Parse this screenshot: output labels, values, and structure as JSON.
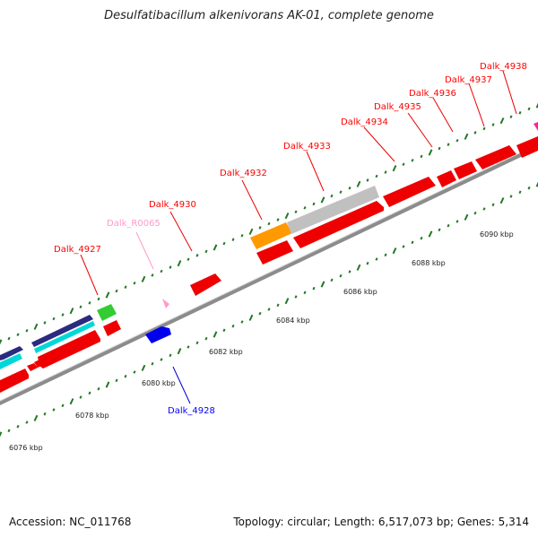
{
  "title": "Desulfatibacillum alkenivorans AK-01, complete genome",
  "footer": {
    "accession": "Accession: NC_011768",
    "summary": "Topology: circular; Length: 6,517,073 bp; Genes: 5,314"
  },
  "colors": {
    "forward_gene": "#ff0000",
    "reverse_gene": "#0000ff",
    "rna": "#ff99cc",
    "tick": "#227722",
    "backbone": "#888888",
    "cyan": "#00e0e0",
    "navy": "#333388",
    "green": "#33cc33",
    "orange": "#ff9900",
    "gray": "#bbbbbb",
    "magenta": "#ff2299"
  },
  "axis_ticks": [
    "6076 kbp",
    "6078 kbp",
    "6080 kbp",
    "6082 kbp",
    "6084 kbp",
    "6086 kbp",
    "6088 kbp",
    "6090 kbp"
  ],
  "gene_labels": [
    {
      "name": "Dalk_4927",
      "kind": "forward"
    },
    {
      "name": "Dalk_R0065",
      "kind": "rna"
    },
    {
      "name": "Dalk_4930",
      "kind": "forward"
    },
    {
      "name": "Dalk_4932",
      "kind": "forward"
    },
    {
      "name": "Dalk_4933",
      "kind": "forward"
    },
    {
      "name": "Dalk_4934",
      "kind": "forward"
    },
    {
      "name": "Dalk_4935",
      "kind": "forward"
    },
    {
      "name": "Dalk_4936",
      "kind": "forward"
    },
    {
      "name": "Dalk_4937",
      "kind": "forward"
    },
    {
      "name": "Dalk_4938",
      "kind": "forward"
    },
    {
      "name": "Dalk_4928",
      "kind": "reverse"
    }
  ]
}
